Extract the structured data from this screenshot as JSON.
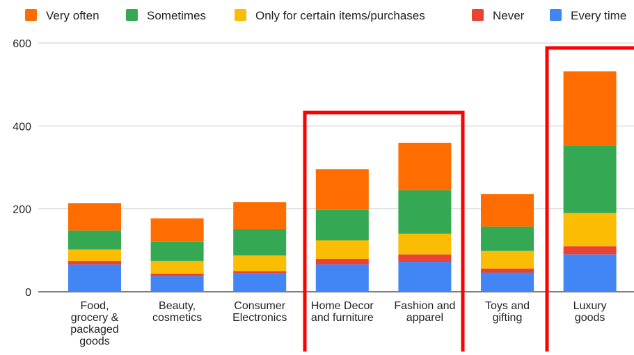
{
  "chart_data": {
    "type": "bar",
    "stacked": true,
    "categories": [
      [
        "Food,",
        "grocery &",
        "packaged",
        "goods"
      ],
      [
        "Beauty,",
        "cosmetics"
      ],
      [
        "Consumer",
        "Electronics"
      ],
      [
        "Home Decor",
        "and furniture"
      ],
      [
        "Fashion and",
        "apparel"
      ],
      [
        "Toys and",
        "gifting"
      ],
      [
        "Luxury",
        "goods"
      ]
    ],
    "series": [
      {
        "name": "Every time",
        "color": "#4285f4",
        "values": [
          66,
          38,
          44,
          66,
          72,
          46,
          90
        ]
      },
      {
        "name": "Never",
        "color": "#ea4335",
        "values": [
          8,
          6,
          6,
          13,
          18,
          10,
          20
        ]
      },
      {
        "name": "Only for certain items/purchases",
        "color": "#fbbc04",
        "values": [
          28,
          30,
          38,
          45,
          50,
          43,
          80
        ]
      },
      {
        "name": "Sometimes",
        "color": "#34a853",
        "values": [
          46,
          47,
          63,
          74,
          105,
          58,
          163
        ]
      },
      {
        "name": "Very often",
        "color": "#ff6d01",
        "values": [
          66,
          56,
          65,
          98,
          114,
          79,
          179
        ]
      }
    ],
    "legend_order": [
      "Very often",
      "Sometimes",
      "Only for certain items/purchases",
      "Never",
      "Every time"
    ],
    "yticks": [
      0,
      200,
      400,
      600
    ],
    "ylim": [
      0,
      600
    ],
    "grid": true,
    "legend_position": "top",
    "highlight_boxes": [
      {
        "categories": [
          3,
          4
        ],
        "color": "#ff0000"
      },
      {
        "categories": [
          6
        ],
        "color": "#ff0000"
      }
    ]
  }
}
